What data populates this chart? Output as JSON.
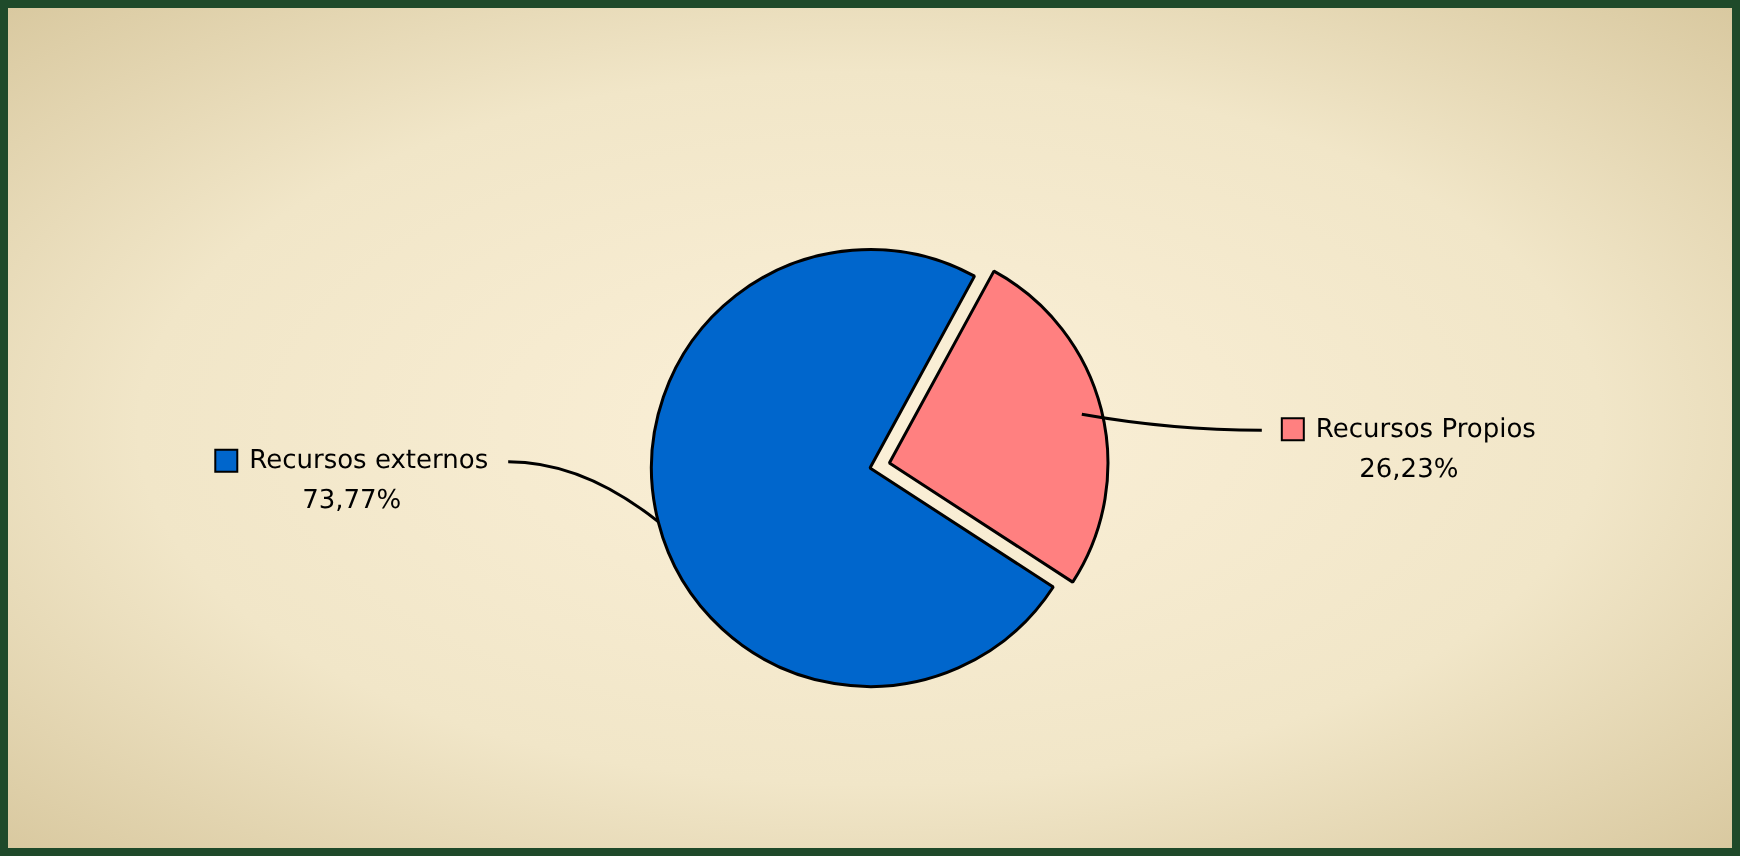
{
  "chart_data": {
    "type": "pie",
    "categories": [
      "Recursos externos",
      "Recursos Propios"
    ],
    "values": [
      73.77,
      26.23
    ],
    "colors": [
      "#0066cc",
      "#ff8080"
    ],
    "value_labels": [
      "73,77%",
      "26,23%"
    ],
    "legend": "right"
  }
}
